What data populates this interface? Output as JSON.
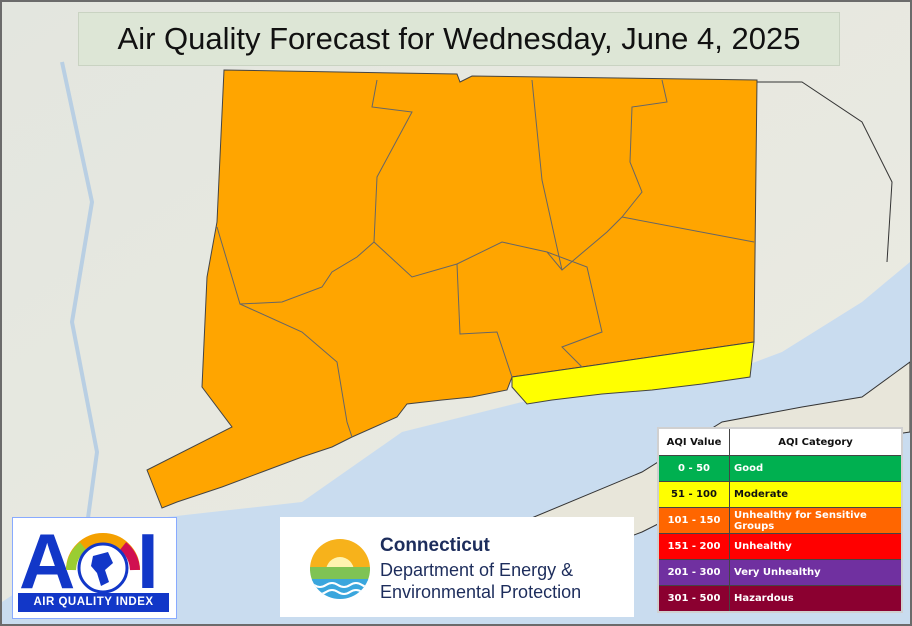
{
  "title": "Air Quality Forecast for Wednesday, June 4, 2025",
  "map": {
    "region": "Connecticut",
    "forecast_colors": {
      "statewide": "#FFA500",
      "southeast_coast": "#FFFF00"
    }
  },
  "legend": {
    "headers": [
      "AQI Value",
      "AQI Category"
    ],
    "rows": [
      {
        "value": "0 - 50",
        "category": "Good",
        "color": "#00B050",
        "text": "#ffffff"
      },
      {
        "value": "51 - 100",
        "category": "Moderate",
        "color": "#FFFF00",
        "text": "#111111"
      },
      {
        "value": "101 - 150",
        "category": "Unhealthy for Sensitive Groups",
        "color": "#FF6600",
        "text": "#ffffff"
      },
      {
        "value": "151 - 200",
        "category": "Unhealthy",
        "color": "#FF0000",
        "text": "#ffffff"
      },
      {
        "value": "201 - 300",
        "category": "Very Unhealthy",
        "color": "#7030A0",
        "text": "#ffffff"
      },
      {
        "value": "301 - 500",
        "category": "Hazardous",
        "color": "#8B0030",
        "text": "#ffffff"
      }
    ]
  },
  "aqi_logo": {
    "letters": "AQI",
    "band": "AIR QUALITY INDEX"
  },
  "deep_logo": {
    "line1": "Connecticut",
    "line2": "Department of Energy &",
    "line3": "Environmental Protection"
  }
}
